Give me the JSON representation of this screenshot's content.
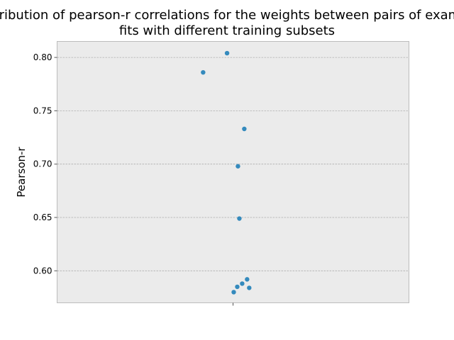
{
  "chart_data": {
    "type": "scatter",
    "title": "Distribution of pearson-r correlations for the weights between pairs of example fits with different training subsets",
    "title_lines": [
      "Distribution of pearson-r correlations for the weights between pairs of example",
      "fits with different training subsets"
    ],
    "xlabel": "",
    "ylabel": "Pearson-r",
    "ylim": [
      0.57,
      0.815
    ],
    "yticks": [
      0.6,
      0.65,
      0.7,
      0.75,
      0.8
    ],
    "ytick_labels": [
      "0.60",
      "0.65",
      "0.70",
      "0.75",
      "0.80"
    ],
    "xlim": [
      -0.5,
      0.5
    ],
    "xticks": [
      0
    ],
    "grid": true,
    "points": [
      {
        "x": -0.085,
        "y": 0.786
      },
      {
        "x": -0.017,
        "y": 0.804
      },
      {
        "x": 0.032,
        "y": 0.733
      },
      {
        "x": 0.014,
        "y": 0.698
      },
      {
        "x": 0.018,
        "y": 0.649
      },
      {
        "x": 0.04,
        "y": 0.592
      },
      {
        "x": 0.026,
        "y": 0.588
      },
      {
        "x": 0.012,
        "y": 0.585
      },
      {
        "x": 0.046,
        "y": 0.584
      },
      {
        "x": 0.002,
        "y": 0.58
      }
    ],
    "colors": {
      "point": "#348abd",
      "background": "#ebebeb"
    }
  }
}
